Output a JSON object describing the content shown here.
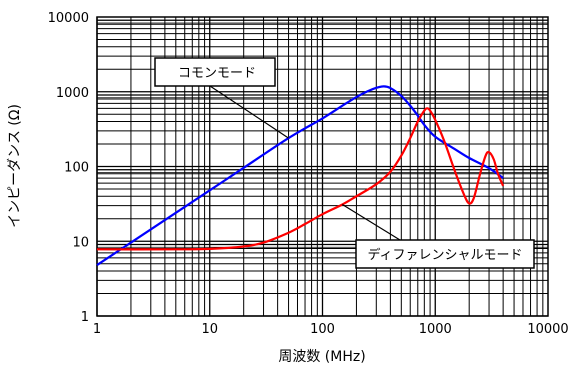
{
  "chart_data": {
    "type": "line",
    "xlabel": "周波数 (MHz)",
    "ylabel": "インピーダンス (Ω)",
    "x_scale": "log",
    "y_scale": "log",
    "xlim": [
      1,
      10000
    ],
    "ylim": [
      1,
      10000
    ],
    "x_ticks": [
      "1",
      "10",
      "100",
      "1000",
      "10000"
    ],
    "y_ticks": [
      "1",
      "10",
      "100",
      "1000",
      "10000"
    ],
    "grid": true,
    "series": [
      {
        "name": "コモンモード",
        "color": "#0000ff",
        "points": [
          [
            1,
            4.8
          ],
          [
            2,
            9.6
          ],
          [
            5,
            24
          ],
          [
            10,
            48
          ],
          [
            20,
            96
          ],
          [
            50,
            240
          ],
          [
            100,
            440
          ],
          [
            150,
            650
          ],
          [
            200,
            850
          ],
          [
            250,
            1010
          ],
          [
            300,
            1130
          ],
          [
            350,
            1180
          ],
          [
            400,
            1120
          ],
          [
            500,
            880
          ],
          [
            600,
            650
          ],
          [
            700,
            480
          ],
          [
            800,
            360
          ],
          [
            1000,
            250
          ],
          [
            1500,
            170
          ],
          [
            2000,
            130
          ],
          [
            3000,
            95
          ],
          [
            4000,
            70
          ]
        ]
      },
      {
        "name": "ディファレンシャルモード",
        "color": "#ff0000",
        "points": [
          [
            1,
            7.8
          ],
          [
            5,
            7.8
          ],
          [
            10,
            7.9
          ],
          [
            20,
            8.5
          ],
          [
            30,
            9.6
          ],
          [
            50,
            13
          ],
          [
            70,
            17
          ],
          [
            100,
            23
          ],
          [
            150,
            31
          ],
          [
            200,
            40
          ],
          [
            300,
            58
          ],
          [
            400,
            85
          ],
          [
            500,
            140
          ],
          [
            600,
            240
          ],
          [
            700,
            400
          ],
          [
            800,
            560
          ],
          [
            850,
            600
          ],
          [
            900,
            560
          ],
          [
            1000,
            420
          ],
          [
            1200,
            220
          ],
          [
            1500,
            85
          ],
          [
            1800,
            42
          ],
          [
            2000,
            32
          ],
          [
            2200,
            38
          ],
          [
            2500,
            80
          ],
          [
            2800,
            140
          ],
          [
            3000,
            155
          ],
          [
            3300,
            125
          ],
          [
            3600,
            80
          ],
          [
            4000,
            55
          ]
        ]
      }
    ],
    "annotations": [
      {
        "text": "コモンモード",
        "series": "コモンモード"
      },
      {
        "text": "ディファレンシャルモード",
        "series": "ディファレンシャルモード"
      }
    ]
  }
}
